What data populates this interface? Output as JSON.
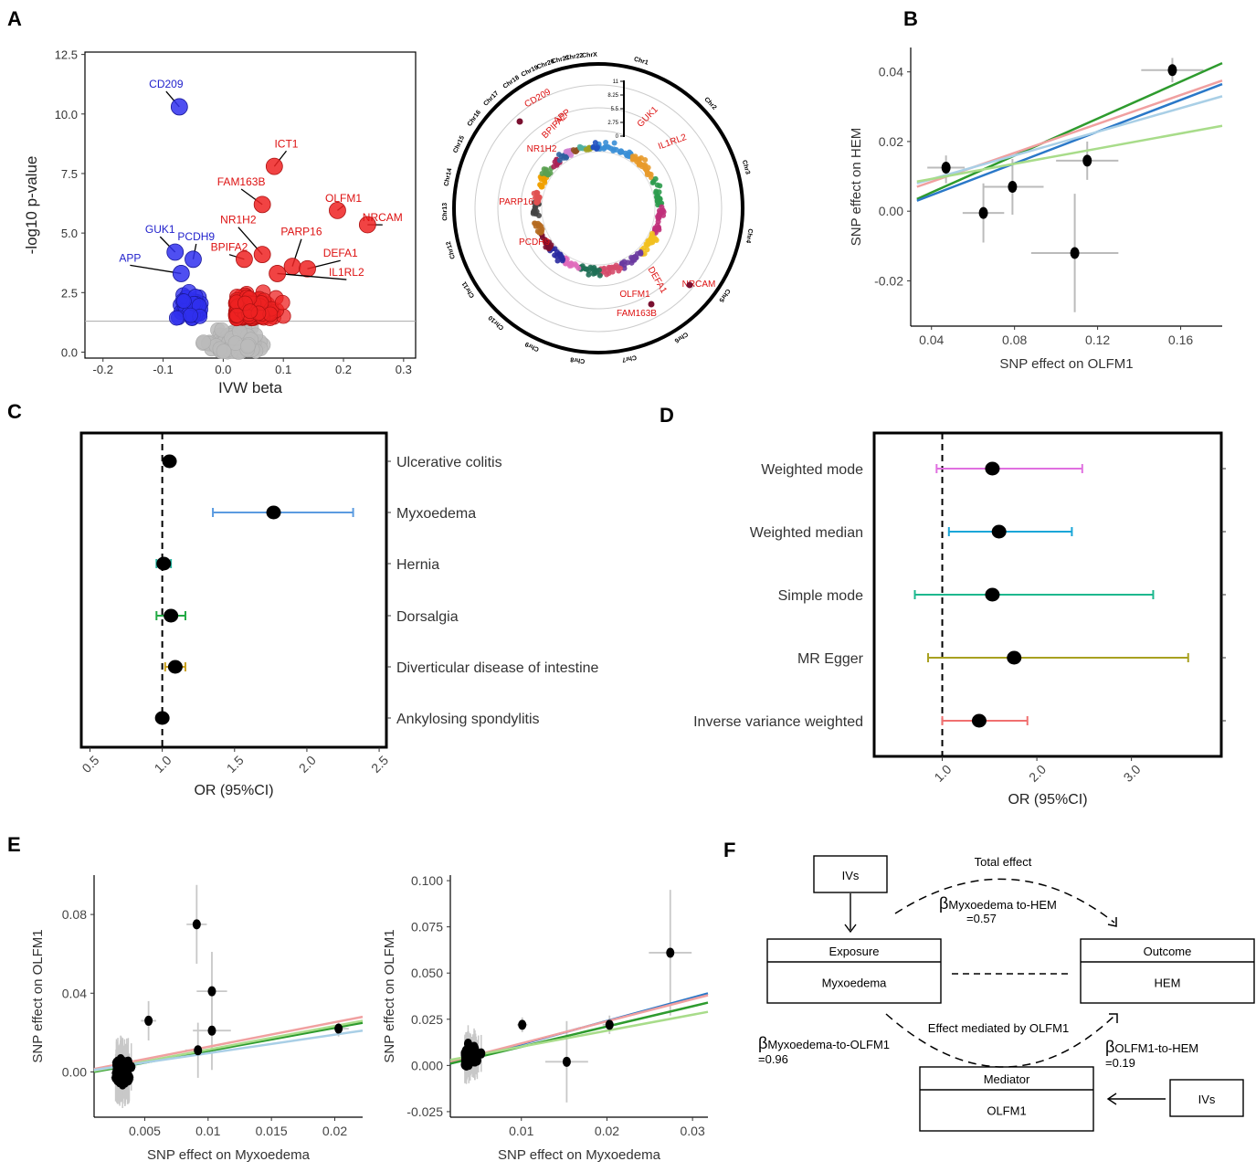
{
  "panels": {
    "A": "A",
    "B": "B",
    "C": "C",
    "D": "D",
    "E": "E",
    "F": "F"
  },
  "chart_data": [
    {
      "id": "A_volcano",
      "type": "scatter",
      "xlabel": "IVW beta",
      "ylabel": "-log10 p-value",
      "xlim": [
        -0.23,
        0.32
      ],
      "ylim": [
        -0.25,
        12.6
      ],
      "xticks": [
        -0.2,
        -0.1,
        0.0,
        0.1,
        0.2,
        0.3
      ],
      "xtick_labels": [
        "-0.2",
        "-0.1",
        "0.0",
        "0.1",
        "0.2",
        "0.3"
      ],
      "yticks": [
        0.0,
        2.5,
        5.0,
        7.5,
        10.0,
        12.5
      ],
      "ytick_labels": [
        "0.0",
        "2.5",
        "5.0",
        "7.5",
        "10.0",
        "12.5"
      ],
      "threshold": 1.3,
      "colors": {
        "down": "#2222dd",
        "up": "#ee1111",
        "ns": "#bbbbbb"
      },
      "labels": [
        {
          "text": "CD209",
          "x": -0.073,
          "y": 10.3,
          "lx": -0.095,
          "ly": 11.1,
          "color": "blue"
        },
        {
          "text": "GUK1",
          "x": -0.08,
          "y": 4.2,
          "lx": -0.105,
          "ly": 5.0,
          "color": "blue"
        },
        {
          "text": "PCDH9",
          "x": -0.05,
          "y": 3.9,
          "lx": -0.045,
          "ly": 4.7,
          "color": "blue"
        },
        {
          "text": "APP",
          "x": -0.07,
          "y": 3.3,
          "lx": -0.155,
          "ly": 3.8,
          "color": "blue"
        },
        {
          "text": "ICT1",
          "x": 0.085,
          "y": 7.8,
          "lx": 0.105,
          "ly": 8.6,
          "color": "red"
        },
        {
          "text": "FAM163B",
          "x": 0.065,
          "y": 6.2,
          "lx": 0.03,
          "ly": 7.0,
          "color": "red"
        },
        {
          "text": "OLFM1",
          "x": 0.19,
          "y": 5.95,
          "lx": 0.2,
          "ly": 6.3,
          "color": "red"
        },
        {
          "text": "NRCAM",
          "x": 0.24,
          "y": 5.35,
          "lx": 0.265,
          "ly": 5.5,
          "color": "red"
        },
        {
          "text": "NR1H2",
          "x": 0.065,
          "y": 4.1,
          "lx": 0.025,
          "ly": 5.4,
          "color": "red"
        },
        {
          "text": "PARP16",
          "x": 0.115,
          "y": 3.6,
          "lx": 0.13,
          "ly": 4.9,
          "color": "red"
        },
        {
          "text": "BPIFA2",
          "x": 0.035,
          "y": 3.9,
          "lx": 0.01,
          "ly": 4.25,
          "color": "red"
        },
        {
          "text": "DEFA1",
          "x": 0.14,
          "y": 3.5,
          "lx": 0.195,
          "ly": 4.0,
          "color": "red"
        },
        {
          "text": "IL1RL2",
          "x": 0.09,
          "y": 3.3,
          "lx": 0.205,
          "ly": 3.2,
          "color": "red"
        }
      ]
    },
    {
      "id": "A_circos",
      "type": "scatter",
      "chromosomes": [
        "Chr1",
        "Chr2",
        "Chr3",
        "Chr4",
        "Chr5",
        "Chr6",
        "Chr7",
        "Chr8",
        "Chr9",
        "Chr10",
        "Chr11",
        "Chr12",
        "Chr13",
        "Chr14",
        "Chr15",
        "Chr16",
        "Chr17",
        "Chr18",
        "Chr19",
        "Chr20",
        "Chr21",
        "Chr22",
        "ChrX"
      ],
      "radial_ticks": [
        "0",
        "2.75",
        "5.5",
        "8.25",
        "11"
      ],
      "labels": [
        "CD209",
        "APP",
        "BPIFA2",
        "NR1H2",
        "GUK1",
        "IL1RL2",
        "PARP16",
        "PCDH9",
        "OLFM1",
        "FAM163B",
        "DEFA1",
        "NRCAM"
      ]
    },
    {
      "id": "B_mr_scatter",
      "type": "scatter",
      "xlabel": "SNP effect on OLFM1",
      "ylabel": "SNP effect on HEM",
      "xlim": [
        0.03,
        0.18
      ],
      "ylim": [
        -0.033,
        0.047
      ],
      "xticks": [
        0.04,
        0.08,
        0.12,
        0.16
      ],
      "xtick_labels": [
        "0.04",
        "0.08",
        "0.12",
        "0.16"
      ],
      "yticks": [
        -0.02,
        0.0,
        0.02,
        0.04
      ],
      "ytick_labels": [
        "-0.02",
        "0.00",
        "0.02",
        "0.04"
      ],
      "points": [
        {
          "x": 0.047,
          "y": 0.0125,
          "xlo": 0.038,
          "xhi": 0.056,
          "ylo": 0.008,
          "yhi": 0.016
        },
        {
          "x": 0.065,
          "y": -0.0005,
          "xlo": 0.055,
          "xhi": 0.075,
          "ylo": -0.009,
          "yhi": 0.008
        },
        {
          "x": 0.079,
          "y": 0.007,
          "xlo": 0.065,
          "xhi": 0.094,
          "ylo": -0.001,
          "yhi": 0.015
        },
        {
          "x": 0.115,
          "y": 0.0145,
          "xlo": 0.1,
          "xhi": 0.13,
          "ylo": 0.009,
          "yhi": 0.02
        },
        {
          "x": 0.109,
          "y": -0.012,
          "xlo": 0.088,
          "xhi": 0.13,
          "ylo": -0.029,
          "yhi": 0.005
        },
        {
          "x": 0.156,
          "y": 0.0405,
          "xlo": 0.141,
          "xhi": 0.171,
          "ylo": 0.037,
          "yhi": 0.044
        }
      ],
      "lines": [
        {
          "color": "#2e9b2e",
          "x0": 0.033,
          "y0": 0.0035,
          "x1": 0.18,
          "y1": 0.0425
        },
        {
          "color": "#f0a0a0",
          "x0": 0.033,
          "y0": 0.007,
          "x1": 0.18,
          "y1": 0.0375
        },
        {
          "color": "#2a78c8",
          "x0": 0.033,
          "y0": 0.003,
          "x1": 0.18,
          "y1": 0.0365
        },
        {
          "color": "#a9cfe6",
          "x0": 0.033,
          "y0": 0.008,
          "x1": 0.18,
          "y1": 0.033
        },
        {
          "color": "#a8dc8a",
          "x0": 0.033,
          "y0": 0.0085,
          "x1": 0.18,
          "y1": 0.0245
        }
      ]
    },
    {
      "id": "C_forest",
      "type": "scatter",
      "xlabel": "OR (95%CI)",
      "xlim": [
        0.44,
        2.55
      ],
      "xticks": [
        0.5,
        1.0,
        1.5,
        2.0,
        2.5
      ],
      "xtick_labels": [
        "0.5",
        "1.0",
        "1.5",
        "2.0",
        "2.5"
      ],
      "rows": [
        {
          "label": "Ulcerative colitis",
          "or": 1.05,
          "lo": 1.02,
          "hi": 1.08,
          "color": "#f06060"
        },
        {
          "label": "Myxoedema",
          "or": 1.77,
          "lo": 1.35,
          "hi": 2.32,
          "color": "#5b9be0"
        },
        {
          "label": "Hernia",
          "or": 1.01,
          "lo": 0.96,
          "hi": 1.06,
          "color": "#26b5a0"
        },
        {
          "label": "Dorsalgia",
          "or": 1.06,
          "lo": 0.96,
          "hi": 1.16,
          "color": "#22aa44"
        },
        {
          "label": "Diverticular disease of intestine",
          "or": 1.09,
          "lo": 1.02,
          "hi": 1.16,
          "color": "#c8a020"
        },
        {
          "label": "Ankylosing spondylitis",
          "or": 1.0,
          "lo": 0.97,
          "hi": 1.03,
          "color": "#d070d0"
        }
      ]
    },
    {
      "id": "D_forest",
      "type": "scatter",
      "xlabel": "OR (95%CI)",
      "xlim": [
        0.28,
        3.95
      ],
      "xticks": [
        1.0,
        2.0,
        3.0
      ],
      "xtick_labels": [
        "1.0",
        "2.0",
        "3.0"
      ],
      "rows": [
        {
          "label": "Weighted mode",
          "or": 1.53,
          "lo": 0.94,
          "hi": 2.48,
          "color": "#e070e0"
        },
        {
          "label": "Weighted median",
          "or": 1.6,
          "lo": 1.07,
          "hi": 2.37,
          "color": "#1aa6d8"
        },
        {
          "label": "Simple mode",
          "or": 1.53,
          "lo": 0.71,
          "hi": 3.23,
          "color": "#1db88e"
        },
        {
          "label": "MR Egger",
          "or": 1.76,
          "lo": 0.85,
          "hi": 3.6,
          "color": "#a8a020"
        },
        {
          "label": "Inverse variance weighted",
          "or": 1.39,
          "lo": 1.0,
          "hi": 1.9,
          "color": "#f07070"
        }
      ]
    },
    {
      "id": "E_left",
      "type": "scatter",
      "xlabel": "SNP effect on Myxoedema",
      "ylabel": "SNP effect on OLFM1",
      "xlim": [
        0.001,
        0.0222
      ],
      "ylim": [
        -0.023,
        0.1
      ],
      "xticks": [
        0.005,
        0.01,
        0.015,
        0.02
      ],
      "xtick_labels": [
        "0.005",
        "0.01",
        "0.015",
        "0.02"
      ],
      "yticks": [
        0.0,
        0.04,
        0.08
      ],
      "ytick_labels": [
        "0.00",
        "0.04",
        "0.08"
      ],
      "highlight_points": [
        {
          "x": 0.0091,
          "y": 0.075,
          "xe": 0.0008,
          "ye": 0.02
        },
        {
          "x": 0.0103,
          "y": 0.041,
          "xe": 0.0012,
          "ye": 0.02
        },
        {
          "x": 0.0103,
          "y": 0.021,
          "xe": 0.0015,
          "ye": 0.02
        },
        {
          "x": 0.0092,
          "y": 0.011,
          "xe": 0.001,
          "ye": 0.014
        },
        {
          "x": 0.0053,
          "y": 0.026,
          "xe": 0.0006,
          "ye": 0.01
        },
        {
          "x": 0.0203,
          "y": 0.022,
          "xe": 0.0008,
          "ye": 0.004
        }
      ],
      "lines": [
        {
          "color": "#f0a0a0",
          "x0": 0.001,
          "y0": 0.0015,
          "x1": 0.0222,
          "y1": 0.028
        },
        {
          "color": "#2e9b2e",
          "x0": 0.001,
          "y0": 0.0,
          "x1": 0.0222,
          "y1": 0.025
        },
        {
          "color": "#a8dc8a",
          "x0": 0.001,
          "y0": 0.0005,
          "x1": 0.0222,
          "y1": 0.026
        },
        {
          "color": "#a9cfe6",
          "x0": 0.001,
          "y0": 0.001,
          "x1": 0.0222,
          "y1": 0.021
        }
      ]
    },
    {
      "id": "E_right",
      "type": "scatter",
      "xlabel": "SNP effect on Myxoedema",
      "ylabel": "SNP effect on OLFM1",
      "xlim": [
        0.0017,
        0.0318
      ],
      "ylim": [
        -0.028,
        0.103
      ],
      "xticks": [
        0.01,
        0.02,
        0.03
      ],
      "xtick_labels": [
        "0.01",
        "0.02",
        "0.03"
      ],
      "yticks": [
        -0.025,
        0.0,
        0.025,
        0.05,
        0.075,
        0.1
      ],
      "ytick_labels": [
        "-0.025",
        "0.000",
        "0.025",
        "0.050",
        "0.075",
        "0.100"
      ],
      "highlight_points": [
        {
          "x": 0.0274,
          "y": 0.061,
          "xe": 0.0025,
          "ye": 0.034
        },
        {
          "x": 0.0203,
          "y": 0.022,
          "xe": 0.0008,
          "ye": 0.005
        },
        {
          "x": 0.0153,
          "y": 0.002,
          "xe": 0.0025,
          "ye": 0.022
        },
        {
          "x": 0.0101,
          "y": 0.022,
          "xe": 0.0006,
          "ye": 0.004
        }
      ],
      "lines": [
        {
          "color": "#2a78c8",
          "x0": 0.0017,
          "y0": 0.001,
          "x1": 0.0318,
          "y1": 0.039
        },
        {
          "color": "#f0a0a0",
          "x0": 0.0017,
          "y0": 0.002,
          "x1": 0.0318,
          "y1": 0.038
        },
        {
          "color": "#2e9b2e",
          "x0": 0.0017,
          "y0": 0.001,
          "x1": 0.0318,
          "y1": 0.034
        },
        {
          "color": "#a8dc8a",
          "x0": 0.0017,
          "y0": 0.003,
          "x1": 0.0318,
          "y1": 0.029
        }
      ]
    }
  ],
  "diagram_F": {
    "ivs_top": "IVs",
    "ivs_right": "IVs",
    "exposure_header": "Exposure",
    "exposure_value": "Myxoedema",
    "outcome_header": "Outcome",
    "outcome_value": "HEM",
    "mediator_header": "Mediator",
    "mediator_value": "OLFM1",
    "total_effect": "Total effect",
    "beta_total_sub": "Myxoedema to-HEM",
    "beta_total_val": "=0.57",
    "mediated": "Effect mediated by OLFM1",
    "beta_a_sub": "Myxoedema-to-OLFM1",
    "beta_a_val": "=0.96",
    "beta_b_sub": "OLFM1-to-HEM",
    "beta_b_val": "=0.19",
    "beta_symbol": "β"
  }
}
